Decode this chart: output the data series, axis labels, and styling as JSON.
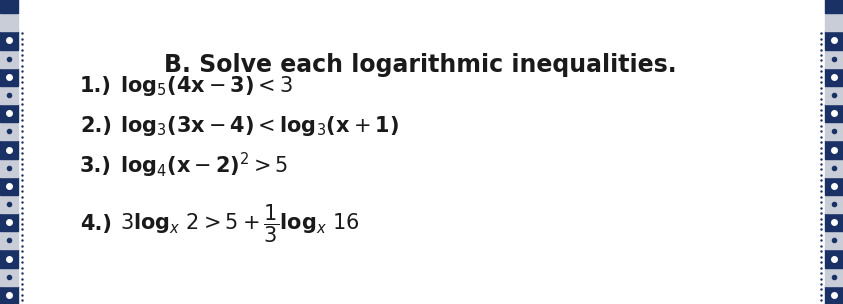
{
  "title": "B. Solve each logarithmic inequalities.",
  "lines": [
    {
      "label": "1.)",
      "math": "$\\mathrm{log}_5(4x - 3) < 3$"
    },
    {
      "label": "2.)",
      "math": "$\\mathrm{log}_3(3x - 4) <  \\mathrm{log}_3(x + 1)$"
    },
    {
      "label": "3.)",
      "math": "$\\mathrm{log}_4(x - 2)^2 > 5$"
    },
    {
      "label": "4.)",
      "math": "$3\\mathrm{log}_x\\, 2 > 5 + \\dfrac{1}{3}\\mathrm{log}_x\\, 16$"
    }
  ],
  "bg_color": "#ffffff",
  "text_color": "#1a1a1a",
  "border_dark": "#1a3166",
  "border_light": "#c8cdd8",
  "title_fontsize": 17,
  "body_fontsize": 15,
  "label_fontsize": 15,
  "fig_width": 8.43,
  "fig_height": 3.04,
  "dpi": 100
}
